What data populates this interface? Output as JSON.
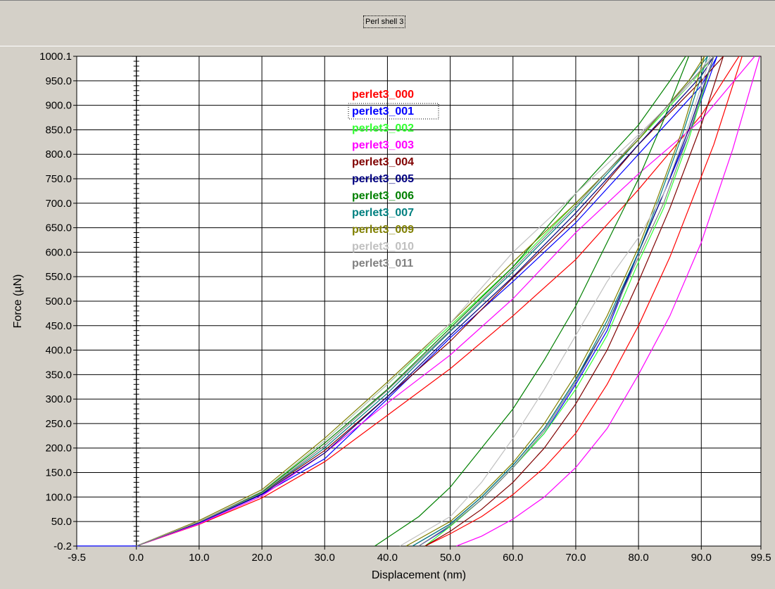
{
  "window": {
    "title": "Perl shell 3"
  },
  "chart_data": {
    "type": "line",
    "title": "Perl shell 3",
    "xlabel": "Displacement (nm)",
    "ylabel": "Force (µN)",
    "xlim": [
      -9.5,
      99.5
    ],
    "ylim": [
      -0.2,
      1000.1
    ],
    "xticks": [
      "-9.5",
      "0.0",
      "10.0",
      "20.0",
      "30.0",
      "40.0",
      "50.0",
      "60.0",
      "70.0",
      "80.0",
      "90.0",
      "99.5"
    ],
    "yticks": [
      "-0.2",
      "50.0",
      "100.0",
      "150.0",
      "200.0",
      "250.0",
      "300.0",
      "350.0",
      "400.0",
      "450.0",
      "500.0",
      "550.0",
      "600.0",
      "650.0",
      "700.0",
      "750.0",
      "800.0",
      "850.0",
      "900.0",
      "950.0",
      "1000.1"
    ],
    "grid": true,
    "legend_position": "upper-center",
    "series": [
      {
        "name": "perlet3_000",
        "color": "#ff0000",
        "load_x": [
          0,
          10,
          20,
          30,
          40,
          50,
          60,
          70,
          80,
          90,
          96
        ],
        "load_y": [
          0,
          44,
          98,
          172,
          267,
          362,
          470,
          585,
          728,
          880,
          1000
        ],
        "unload_x": [
          96.5,
          92,
          85,
          80,
          75,
          70,
          65,
          60,
          55,
          50,
          46
        ],
        "unload_y": [
          1000,
          820,
          590,
          450,
          330,
          230,
          160,
          105,
          60,
          25,
          0
        ]
      },
      {
        "name": "perlet3_001",
        "color": "#0000ff",
        "load_x": [
          0,
          10,
          20,
          30,
          40,
          50,
          60,
          70,
          80,
          90,
          92.5
        ],
        "load_y": [
          0,
          47,
          105,
          178,
          300,
          425,
          540,
          660,
          800,
          940,
          1000
        ],
        "unload_x": [
          92.5,
          88,
          84,
          80,
          75,
          70,
          65,
          60,
          55,
          50,
          45
        ],
        "unload_y": [
          1000,
          840,
          720,
          600,
          440,
          330,
          230,
          160,
          95,
          40,
          0
        ]
      },
      {
        "name": "perlet3_002",
        "color": "#33ff33",
        "load_x": [
          0,
          10,
          20,
          30,
          40,
          50,
          60,
          70,
          80,
          88,
          92
        ],
        "load_y": [
          0,
          50,
          110,
          215,
          330,
          450,
          570,
          700,
          830,
          940,
          1000
        ],
        "unload_x": [
          92,
          88,
          84,
          80,
          75,
          70,
          65,
          60,
          55,
          50,
          46
        ],
        "unload_y": [
          1000,
          830,
          690,
          580,
          430,
          320,
          230,
          160,
          95,
          40,
          0
        ]
      },
      {
        "name": "perlet3_003",
        "color": "#ff00ff",
        "load_x": [
          0,
          10,
          20,
          30,
          40,
          50,
          60,
          70,
          80,
          90,
          98.5
        ],
        "load_y": [
          0,
          45,
          102,
          190,
          292,
          390,
          505,
          640,
          760,
          870,
          1000
        ],
        "unload_x": [
          99.3,
          95,
          90,
          85,
          80,
          75,
          70,
          65,
          60,
          55,
          51
        ],
        "unload_y": [
          1000,
          810,
          620,
          470,
          350,
          240,
          160,
          100,
          55,
          20,
          0
        ]
      },
      {
        "name": "perlet3_004",
        "color": "#800000",
        "load_x": [
          0,
          10,
          20,
          30,
          40,
          50,
          60,
          70,
          80,
          90,
          93.5
        ],
        "load_y": [
          0,
          48,
          108,
          195,
          305,
          418,
          548,
          670,
          820,
          950,
          1000
        ],
        "unload_x": [
          93.5,
          90,
          85,
          80,
          75,
          70,
          65,
          60,
          55,
          50,
          46
        ],
        "unload_y": [
          1000,
          860,
          690,
          540,
          400,
          290,
          200,
          130,
          75,
          30,
          0
        ]
      },
      {
        "name": "perlet3_005",
        "color": "#000080",
        "load_x": [
          0,
          10,
          20,
          30,
          40,
          50,
          60,
          70,
          80,
          90,
          92
        ],
        "load_y": [
          0,
          48,
          106,
          190,
          305,
          430,
          550,
          680,
          820,
          960,
          1000
        ],
        "unload_x": [
          92,
          88,
          84,
          80,
          75,
          70,
          65,
          60,
          55,
          50,
          44
        ],
        "unload_y": [
          1000,
          850,
          720,
          600,
          450,
          340,
          240,
          165,
          100,
          45,
          0
        ]
      },
      {
        "name": "perlet3_006",
        "color": "#008000",
        "load_x": [
          0,
          10,
          20,
          30,
          40,
          50,
          60,
          70,
          80,
          85,
          87.5
        ],
        "load_y": [
          0,
          50,
          110,
          210,
          320,
          445,
          570,
          720,
          860,
          950,
          1000
        ],
        "unload_x": [
          88,
          84,
          80,
          75,
          70,
          65,
          60,
          55,
          50,
          45,
          38
        ],
        "unload_y": [
          1000,
          870,
          750,
          620,
          490,
          380,
          280,
          200,
          120,
          60,
          0
        ]
      },
      {
        "name": "perlet3_007",
        "color": "#008080",
        "load_x": [
          0,
          10,
          20,
          30,
          40,
          50,
          60,
          70,
          80,
          88,
          91
        ],
        "load_y": [
          0,
          49,
          108,
          200,
          312,
          438,
          560,
          690,
          830,
          950,
          1000
        ],
        "unload_x": [
          91,
          87,
          83,
          80,
          75,
          70,
          65,
          60,
          55,
          50,
          44
        ],
        "unload_y": [
          1000,
          840,
          700,
          600,
          460,
          340,
          240,
          165,
          100,
          45,
          0
        ]
      },
      {
        "name": "perlet3_009",
        "color": "#808000",
        "load_x": [
          0,
          10,
          20,
          30,
          40,
          50,
          60,
          70,
          80,
          88,
          90.5
        ],
        "load_y": [
          0,
          52,
          115,
          220,
          335,
          455,
          580,
          700,
          830,
          950,
          1000
        ],
        "unload_x": [
          90.5,
          87,
          83,
          80,
          75,
          70,
          65,
          60,
          55,
          50,
          43
        ],
        "unload_y": [
          1000,
          850,
          710,
          610,
          470,
          350,
          250,
          170,
          105,
          50,
          0
        ]
      },
      {
        "name": "perlet3_010",
        "color": "#c0c0c0",
        "load_x": [
          0,
          10,
          20,
          30,
          40,
          50,
          60,
          70,
          80,
          88,
          91.5
        ],
        "load_y": [
          0,
          50,
          112,
          215,
          330,
          455,
          600,
          720,
          840,
          940,
          1000
        ],
        "unload_x": [
          91.5,
          88,
          84,
          80,
          75,
          70,
          65,
          60,
          55,
          50,
          42
        ],
        "unload_y": [
          1000,
          860,
          720,
          630,
          540,
          430,
          320,
          220,
          130,
          60,
          0
        ]
      },
      {
        "name": "perlet3_011",
        "color": "#808080",
        "load_x": [
          0,
          10,
          20,
          30,
          40,
          50,
          60,
          70,
          80,
          88,
          92
        ],
        "load_y": [
          0,
          49,
          108,
          205,
          318,
          440,
          565,
          695,
          835,
          945,
          1000
        ],
        "unload_x": [
          92,
          88,
          84,
          80,
          75,
          70,
          65,
          60,
          55,
          50,
          45
        ],
        "unload_y": [
          1000,
          840,
          700,
          590,
          450,
          335,
          235,
          160,
          95,
          42,
          0
        ]
      }
    ]
  }
}
